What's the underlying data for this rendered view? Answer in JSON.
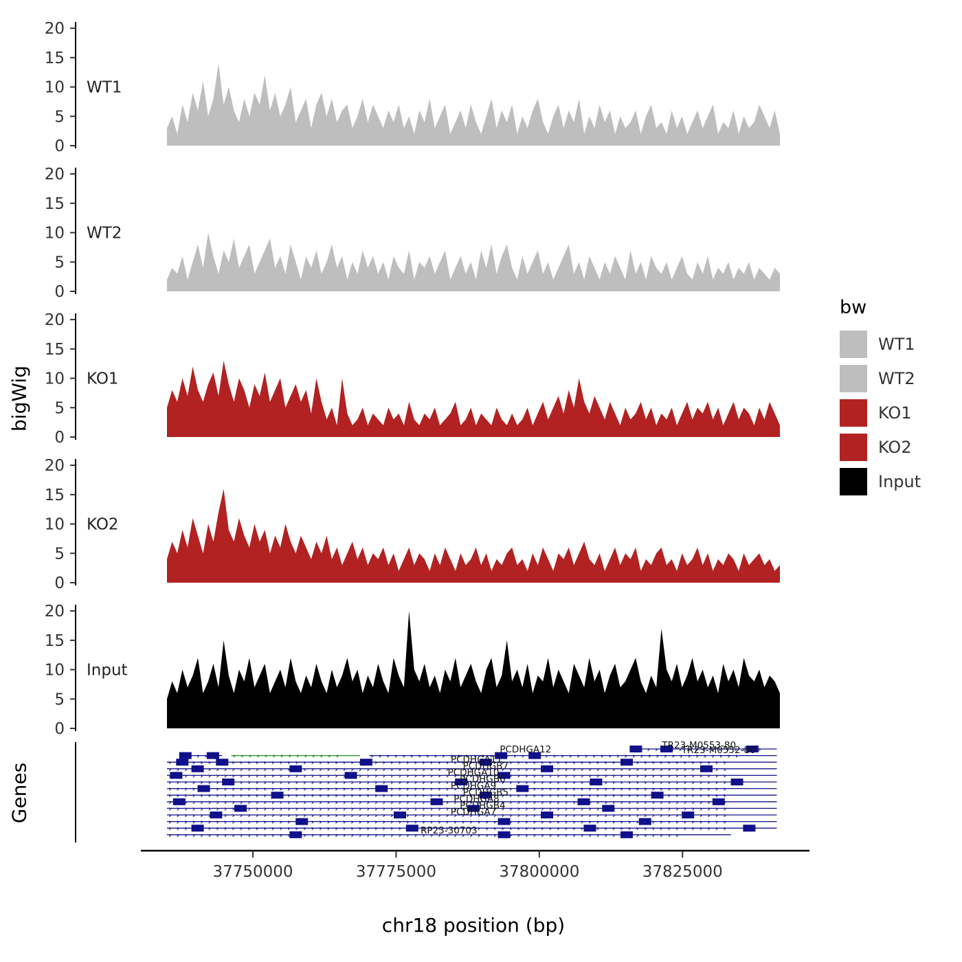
{
  "figure": {
    "ylabel": "bigWig",
    "genes_label": "Genes",
    "xlabel": "chr18 position (bp)"
  },
  "legend": {
    "title": "bw",
    "items": [
      {
        "label": "WT1",
        "color": "#bebebe"
      },
      {
        "label": "WT2",
        "color": "#bebebe"
      },
      {
        "label": "KO1",
        "color": "#b22222"
      },
      {
        "label": "KO2",
        "color": "#b22222"
      },
      {
        "label": "Input",
        "color": "#000000"
      }
    ]
  },
  "chart_data": {
    "type": "area",
    "title": "",
    "xlabel": "chr18 position (bp)",
    "ylabel": "bigWig",
    "x_axis": {
      "min": 37735000,
      "max": 37842000,
      "ticks": [
        37750000,
        37775000,
        37800000,
        37825000
      ],
      "tick_labels": [
        "37750000",
        "37775000",
        "37800000",
        "37825000"
      ]
    },
    "y_axis": {
      "min": 0,
      "max": 20,
      "ticks": [
        0,
        5,
        10,
        15,
        20
      ]
    },
    "tracks": [
      {
        "name": "WT1",
        "color": "#bebebe",
        "values": [
          3,
          5,
          2,
          7,
          4,
          9,
          6,
          11,
          5,
          8,
          14,
          7,
          10,
          6,
          4,
          8,
          5,
          9,
          7,
          12,
          6,
          9,
          5,
          7,
          10,
          4,
          6,
          8,
          3,
          7,
          9,
          5,
          8,
          4,
          6,
          7,
          3,
          5,
          8,
          4,
          7,
          5,
          3,
          6,
          4,
          7,
          3,
          5,
          2,
          6,
          4,
          8,
          3,
          5,
          7,
          2,
          4,
          6,
          3,
          7,
          4,
          2,
          5,
          8,
          3,
          6,
          4,
          7,
          2,
          5,
          3,
          6,
          8,
          4,
          2,
          5,
          7,
          3,
          6,
          4,
          8,
          2,
          5,
          3,
          7,
          4,
          6,
          2,
          5,
          3,
          4,
          6,
          2,
          5,
          7,
          3,
          4,
          2,
          6,
          3,
          5,
          2,
          4,
          6,
          3,
          5,
          7,
          2,
          4,
          3,
          6,
          2,
          5,
          3,
          4,
          7,
          5,
          3,
          6,
          2
        ]
      },
      {
        "name": "WT2",
        "color": "#bebebe",
        "values": [
          2,
          4,
          3,
          6,
          2,
          5,
          8,
          4,
          10,
          6,
          3,
          7,
          5,
          9,
          4,
          6,
          8,
          3,
          5,
          7,
          9,
          4,
          6,
          3,
          8,
          5,
          2,
          6,
          4,
          7,
          3,
          5,
          8,
          4,
          6,
          2,
          5,
          3,
          7,
          4,
          6,
          3,
          5,
          2,
          6,
          4,
          3,
          7,
          2,
          5,
          4,
          6,
          3,
          5,
          7,
          2,
          4,
          6,
          3,
          5,
          2,
          7,
          4,
          8,
          3,
          6,
          8,
          4,
          2,
          6,
          3,
          5,
          7,
          3,
          5,
          2,
          4,
          6,
          8,
          3,
          5,
          2,
          6,
          4,
          2,
          5,
          3,
          6,
          4,
          2,
          7,
          3,
          5,
          2,
          6,
          4,
          3,
          5,
          2,
          4,
          6,
          3,
          2,
          5,
          3,
          6,
          2,
          4,
          3,
          5,
          2,
          4,
          3,
          5,
          2,
          4,
          3,
          2,
          4,
          3
        ]
      },
      {
        "name": "KO1",
        "color": "#b22222",
        "values": [
          5,
          8,
          6,
          10,
          7,
          12,
          8,
          6,
          9,
          11,
          7,
          13,
          9,
          6,
          10,
          8,
          5,
          9,
          7,
          11,
          6,
          8,
          10,
          5,
          7,
          9,
          6,
          8,
          4,
          10,
          6,
          3,
          5,
          2,
          10,
          4,
          2,
          3,
          5,
          2,
          4,
          3,
          2,
          5,
          3,
          4,
          2,
          6,
          3,
          2,
          4,
          3,
          5,
          2,
          3,
          4,
          6,
          2,
          3,
          5,
          2,
          4,
          3,
          2,
          5,
          3,
          2,
          4,
          2,
          3,
          5,
          2,
          4,
          6,
          3,
          5,
          7,
          4,
          8,
          5,
          10,
          6,
          4,
          7,
          5,
          3,
          6,
          4,
          2,
          5,
          3,
          4,
          6,
          3,
          5,
          2,
          4,
          3,
          5,
          2,
          4,
          6,
          3,
          5,
          4,
          6,
          3,
          5,
          2,
          4,
          6,
          3,
          5,
          4,
          2,
          5,
          3,
          6,
          4,
          2
        ]
      },
      {
        "name": "KO2",
        "color": "#b22222",
        "values": [
          4,
          7,
          5,
          9,
          6,
          11,
          8,
          5,
          10,
          7,
          12,
          16,
          9,
          7,
          11,
          8,
          6,
          10,
          7,
          9,
          5,
          8,
          6,
          10,
          7,
          5,
          8,
          6,
          4,
          7,
          5,
          8,
          4,
          6,
          3,
          5,
          7,
          4,
          6,
          3,
          5,
          4,
          6,
          3,
          5,
          2,
          4,
          6,
          3,
          5,
          4,
          2,
          5,
          3,
          6,
          4,
          2,
          5,
          3,
          4,
          6,
          3,
          5,
          2,
          4,
          3,
          5,
          6,
          3,
          4,
          2,
          5,
          3,
          6,
          4,
          2,
          5,
          4,
          6,
          3,
          5,
          7,
          4,
          3,
          5,
          2,
          4,
          6,
          3,
          5,
          4,
          6,
          2,
          4,
          3,
          5,
          6,
          3,
          4,
          2,
          5,
          3,
          4,
          6,
          3,
          5,
          2,
          4,
          3,
          5,
          4,
          2,
          5,
          3,
          4,
          5,
          3,
          4,
          2,
          3
        ]
      },
      {
        "name": "Input",
        "color": "#000000",
        "values": [
          5,
          8,
          6,
          10,
          7,
          9,
          12,
          6,
          8,
          11,
          7,
          15,
          9,
          6,
          10,
          8,
          12,
          7,
          9,
          11,
          6,
          8,
          10,
          7,
          12,
          8,
          6,
          9,
          7,
          11,
          8,
          6,
          10,
          7,
          9,
          12,
          8,
          10,
          6,
          9,
          7,
          11,
          8,
          6,
          12,
          9,
          7,
          20,
          10,
          8,
          11,
          7,
          9,
          6,
          10,
          8,
          12,
          7,
          9,
          11,
          8,
          6,
          10,
          12,
          7,
          9,
          15,
          8,
          10,
          7,
          11,
          6,
          9,
          8,
          12,
          7,
          10,
          8,
          6,
          11,
          9,
          7,
          12,
          8,
          10,
          6,
          9,
          11,
          7,
          8,
          10,
          12,
          8,
          6,
          9,
          7,
          17,
          10,
          8,
          11,
          7,
          9,
          12,
          8,
          10,
          7,
          9,
          6,
          11,
          8,
          10,
          7,
          12,
          9,
          8,
          10,
          7,
          9,
          8,
          6
        ]
      }
    ],
    "genes": {
      "navy": "#10108b",
      "green": "#1f8b1f",
      "row_count": 14,
      "segments": [
        {
          "row": 0,
          "start": 0.755,
          "end": 0.995,
          "dir": "right",
          "color": "#10108b",
          "exons": [
            0.765,
            0.815,
            0.955
          ]
        },
        {
          "row": 1,
          "start": 0.02,
          "end": 0.09,
          "dir": "right",
          "color": "#10108b",
          "exons": [
            0.03,
            0.075
          ]
        },
        {
          "row": 1,
          "start": 0.105,
          "end": 0.315,
          "dir": "left",
          "color": "#1f8b1f",
          "exons": []
        },
        {
          "row": 1,
          "start": 0.33,
          "end": 0.995,
          "dir": "right",
          "color": "#10108b",
          "exons": [
            0.545,
            0.6
          ]
        },
        {
          "row": 2,
          "start": 0.0,
          "end": 0.995,
          "dir": "right",
          "color": "#10108b",
          "exons": [
            0.025,
            0.09,
            0.325,
            0.52,
            0.75
          ]
        },
        {
          "row": 3,
          "start": 0.0,
          "end": 0.995,
          "dir": "right",
          "color": "#10108b",
          "exons": [
            0.05,
            0.21,
            0.62,
            0.88
          ]
        },
        {
          "row": 4,
          "start": 0.0,
          "end": 0.995,
          "dir": "right",
          "color": "#10108b",
          "exons": [
            0.015,
            0.3,
            0.55
          ]
        },
        {
          "row": 5,
          "start": 0.0,
          "end": 0.995,
          "dir": "right",
          "color": "#10108b",
          "exons": [
            0.1,
            0.48,
            0.7,
            0.93
          ]
        },
        {
          "row": 6,
          "start": 0.0,
          "end": 0.995,
          "dir": "right",
          "color": "#10108b",
          "exons": [
            0.06,
            0.35,
            0.58
          ]
        },
        {
          "row": 7,
          "start": 0.0,
          "end": 0.995,
          "dir": "right",
          "color": "#10108b",
          "exons": [
            0.18,
            0.52,
            0.8
          ]
        },
        {
          "row": 8,
          "start": 0.0,
          "end": 0.995,
          "dir": "right",
          "color": "#10108b",
          "exons": [
            0.02,
            0.44,
            0.68,
            0.9
          ]
        },
        {
          "row": 9,
          "start": 0.0,
          "end": 0.995,
          "dir": "right",
          "color": "#10108b",
          "exons": [
            0.12,
            0.5,
            0.72
          ]
        },
        {
          "row": 10,
          "start": 0.0,
          "end": 0.995,
          "dir": "right",
          "color": "#10108b",
          "exons": [
            0.08,
            0.38,
            0.62,
            0.85
          ]
        },
        {
          "row": 11,
          "start": 0.0,
          "end": 0.995,
          "dir": "right",
          "color": "#10108b",
          "exons": [
            0.22,
            0.55,
            0.78
          ]
        },
        {
          "row": 12,
          "start": 0.0,
          "end": 0.995,
          "dir": "right",
          "color": "#10108b",
          "exons": [
            0.05,
            0.4,
            0.69,
            0.95
          ]
        },
        {
          "row": 13,
          "start": 0.0,
          "end": 0.92,
          "dir": "right",
          "color": "#10108b",
          "exons": [
            0.21,
            0.55,
            0.75
          ]
        }
      ],
      "labels": [
        {
          "text": "PCDHGA12",
          "xf": 0.585,
          "row": 0.1
        },
        {
          "text": "TR23-M0553-80",
          "xf": 0.868,
          "row": -0.5
        },
        {
          "text": "TR23-M0552-80",
          "xf": 0.9,
          "row": 0.2
        },
        {
          "text": "PCDHGA11",
          "xf": 0.505,
          "row": 1.6
        },
        {
          "text": "PCDHGB7",
          "xf": 0.52,
          "row": 2.6
        },
        {
          "text": "PCDHGA10",
          "xf": 0.5,
          "row": 3.6
        },
        {
          "text": "PCDHGB6",
          "xf": 0.515,
          "row": 4.6
        },
        {
          "text": "PCDHGA9",
          "xf": 0.5,
          "row": 5.6
        },
        {
          "text": "PCDHGB5",
          "xf": 0.52,
          "row": 6.6
        },
        {
          "text": "PCDHGA8",
          "xf": 0.505,
          "row": 7.6
        },
        {
          "text": "PCDHGB4",
          "xf": 0.515,
          "row": 8.6
        },
        {
          "text": "PCDHGA7",
          "xf": 0.5,
          "row": 9.6
        },
        {
          "text": "RP23-30703",
          "xf": 0.46,
          "row": 12.4
        }
      ]
    }
  }
}
